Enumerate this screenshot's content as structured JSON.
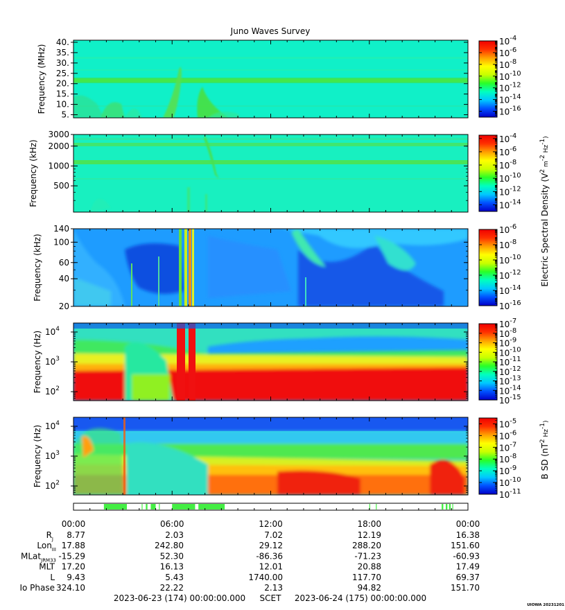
{
  "title": "Juno Waves Survey",
  "colors": {
    "colormap": [
      "#0000c8",
      "#0050ff",
      "#00c8ff",
      "#00ffc0",
      "#28ff28",
      "#c8ff00",
      "#ffff00",
      "#ffa000",
      "#ff3000",
      "#f00000"
    ],
    "mask_bar": "#44ee44"
  },
  "chart_data": [
    {
      "type": "heatmap",
      "panel": "1",
      "ylabel": "Frequency (MHz)",
      "yscale": "linear",
      "ylim": [
        3.5,
        41
      ],
      "ytick_values": [
        5,
        10,
        15,
        20,
        25,
        30,
        35,
        40
      ],
      "ytick_labels": [
        "5.",
        "10.",
        "15.",
        "20.",
        "25.",
        "30.",
        "35.",
        "40."
      ],
      "colorbar": {
        "label": "",
        "exp_min": -17,
        "exp_max": -4,
        "ticks": [
          -16,
          -14,
          -12,
          -10,
          -8,
          -6,
          -4
        ]
      }
    },
    {
      "type": "heatmap",
      "panel": "2",
      "ylabel": "Frequency (kHz)",
      "yscale": "log",
      "ylim": [
        200,
        3000
      ],
      "ytick_values": [
        500,
        1000,
        2000,
        3000
      ],
      "ytick_labels": [
        "500",
        "1000",
        "2000",
        "3000"
      ],
      "colorbar": {
        "label": "",
        "exp_min": -15,
        "exp_max": -3.5,
        "ticks": [
          -14,
          -12,
          -10,
          -8,
          -6,
          -4
        ]
      }
    },
    {
      "type": "heatmap",
      "panel": "3",
      "ylabel": "Frequency (kHz)",
      "yscale": "log",
      "ylim": [
        20,
        140
      ],
      "ytick_values": [
        20,
        40,
        60,
        100,
        140
      ],
      "ytick_labels": [
        "20",
        "40",
        "60",
        "100",
        "140"
      ],
      "colorbar": {
        "label": "Electric Spectral Density (V2 m-2 Hz-1)",
        "exp_min": -16,
        "exp_max": -6,
        "ticks": [
          -16,
          -14,
          -12,
          -10,
          -8,
          -6
        ]
      }
    },
    {
      "type": "heatmap",
      "panel": "4",
      "ylabel": "Frequency (Hz)",
      "yscale": "log",
      "ylim": [
        50,
        20000
      ],
      "ytick_values": [
        100,
        1000,
        10000
      ],
      "ytick_labels": [
        "10",
        "10",
        "10"
      ],
      "ytick_exps": [
        "2",
        "3",
        "4"
      ],
      "colorbar": {
        "label": "",
        "exp_min": -15,
        "exp_max": -7,
        "ticks": [
          -15,
          -14,
          -13,
          -12,
          -11,
          -10,
          -9,
          -8,
          -7
        ]
      }
    },
    {
      "type": "heatmap",
      "panel": "5",
      "ylabel": "Frequency (Hz)",
      "yscale": "log",
      "ylim": [
        50,
        20000
      ],
      "ytick_values": [
        100,
        1000,
        10000
      ],
      "ytick_labels": [
        "10",
        "10",
        "10"
      ],
      "ytick_exps": [
        "2",
        "3",
        "4"
      ],
      "colorbar": {
        "label": "B SD (nT2 Hz-1)",
        "exp_min": -11,
        "exp_max": -4.5,
        "ticks": [
          -11,
          -10,
          -9,
          -8,
          -7,
          -6,
          -5
        ]
      }
    }
  ],
  "time_axis": {
    "tick_labels": [
      "00:00",
      "06:00",
      "12:00",
      "18:00",
      "00:00"
    ],
    "hours": [
      0,
      6,
      12,
      18,
      24
    ]
  },
  "mask_intervals_hours": [
    [
      1.85,
      3.25
    ],
    [
      4.15,
      4.2
    ],
    [
      4.4,
      4.5
    ],
    [
      4.7,
      5.0
    ],
    [
      5.2,
      5.25
    ],
    [
      6.0,
      7.4
    ],
    [
      7.6,
      9.2
    ],
    [
      18.0,
      18.05
    ],
    [
      18.4,
      18.45
    ],
    [
      22.4,
      22.5
    ],
    [
      22.65,
      22.75
    ],
    [
      22.85,
      22.95
    ],
    [
      23.05,
      23.1
    ]
  ],
  "ephemeris": [
    {
      "label": "R",
      "sub": "J",
      "values": [
        "8.77",
        "2.03",
        "7.02",
        "12.19",
        "16.38"
      ]
    },
    {
      "label": "Lon",
      "sub": "III",
      "values": [
        "17.88",
        "242.80",
        "29.12",
        "288.20",
        "151.60"
      ]
    },
    {
      "label": "MLat",
      "sub": "JRM33",
      "values": [
        "-15.29",
        "52.30",
        "-86.36",
        "-71.23",
        "-60.93"
      ]
    },
    {
      "label": "MLT",
      "sub": "",
      "values": [
        "17.20",
        "16.13",
        "12.01",
        "20.88",
        "17.49"
      ]
    },
    {
      "label": "L",
      "sub": "",
      "values": [
        "9.43",
        "5.43",
        "1740.00",
        "117.70",
        "69.37"
      ]
    },
    {
      "label": "Io Phase",
      "sub": "",
      "values": [
        "324.10",
        "22.22",
        "2.13",
        "94.82",
        "151.70"
      ]
    }
  ],
  "footer": {
    "start": "2023-06-23 (174) 00:00:00.000",
    "scet": "SCET",
    "end": "2023-06-24 (175) 00:00:00.000"
  },
  "watermark": "UIOWA 20231201"
}
